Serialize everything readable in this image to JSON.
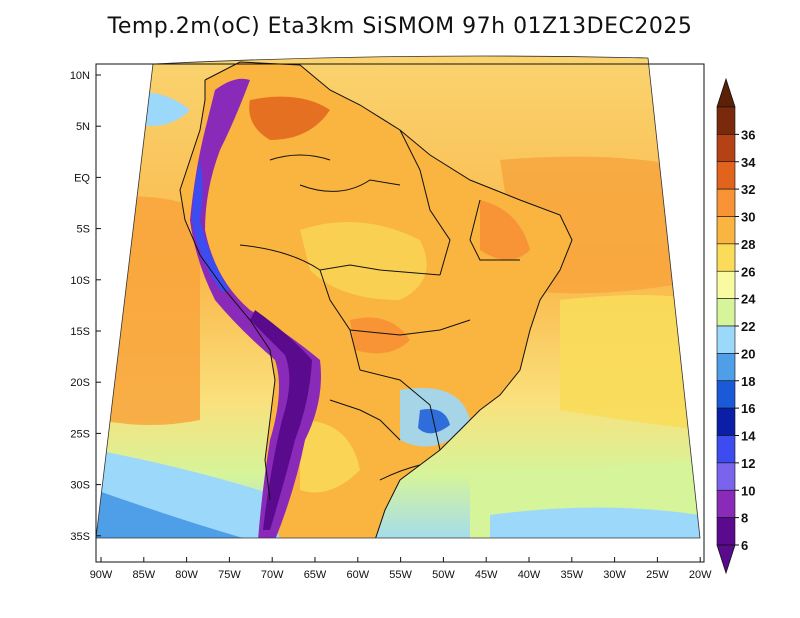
{
  "title": "Temp.2m(oC) Eta3km SiSMOM 97h 01Z13DEC2025",
  "map": {
    "projection": "Lambert-like conic",
    "region": "South America",
    "lon_range": [
      -90,
      -20
    ],
    "lat_range": [
      -37,
      12
    ]
  },
  "axes": {
    "lon_ticks": [
      "90W",
      "85W",
      "80W",
      "75W",
      "70W",
      "65W",
      "60W",
      "55W",
      "50W",
      "45W",
      "40W",
      "35W",
      "30W",
      "25W",
      "20W"
    ],
    "lat_ticks": [
      "10N",
      "5N",
      "EQ",
      "5S",
      "10S",
      "15S",
      "20S",
      "25S",
      "30S",
      "35S"
    ]
  },
  "colorbar": {
    "unit": "oC",
    "labels": [
      "6",
      "8",
      "10",
      "12",
      "14",
      "16",
      "18",
      "20",
      "22",
      "24",
      "26",
      "28",
      "30",
      "32",
      "34",
      "36"
    ],
    "colors": [
      "#5a0a8c",
      "#8a2ab8",
      "#7a64ee",
      "#3c4cee",
      "#0a1ea6",
      "#1a5ad8",
      "#4e9ee8",
      "#9cd8fa",
      "#d6f49a",
      "#fafaa0",
      "#fadc5a",
      "#fab440",
      "#f89436",
      "#e2641c",
      "#b44214",
      "#7a2a0a"
    ],
    "top_color": "#5a2008",
    "bottom_color": "#5a0a8c"
  }
}
